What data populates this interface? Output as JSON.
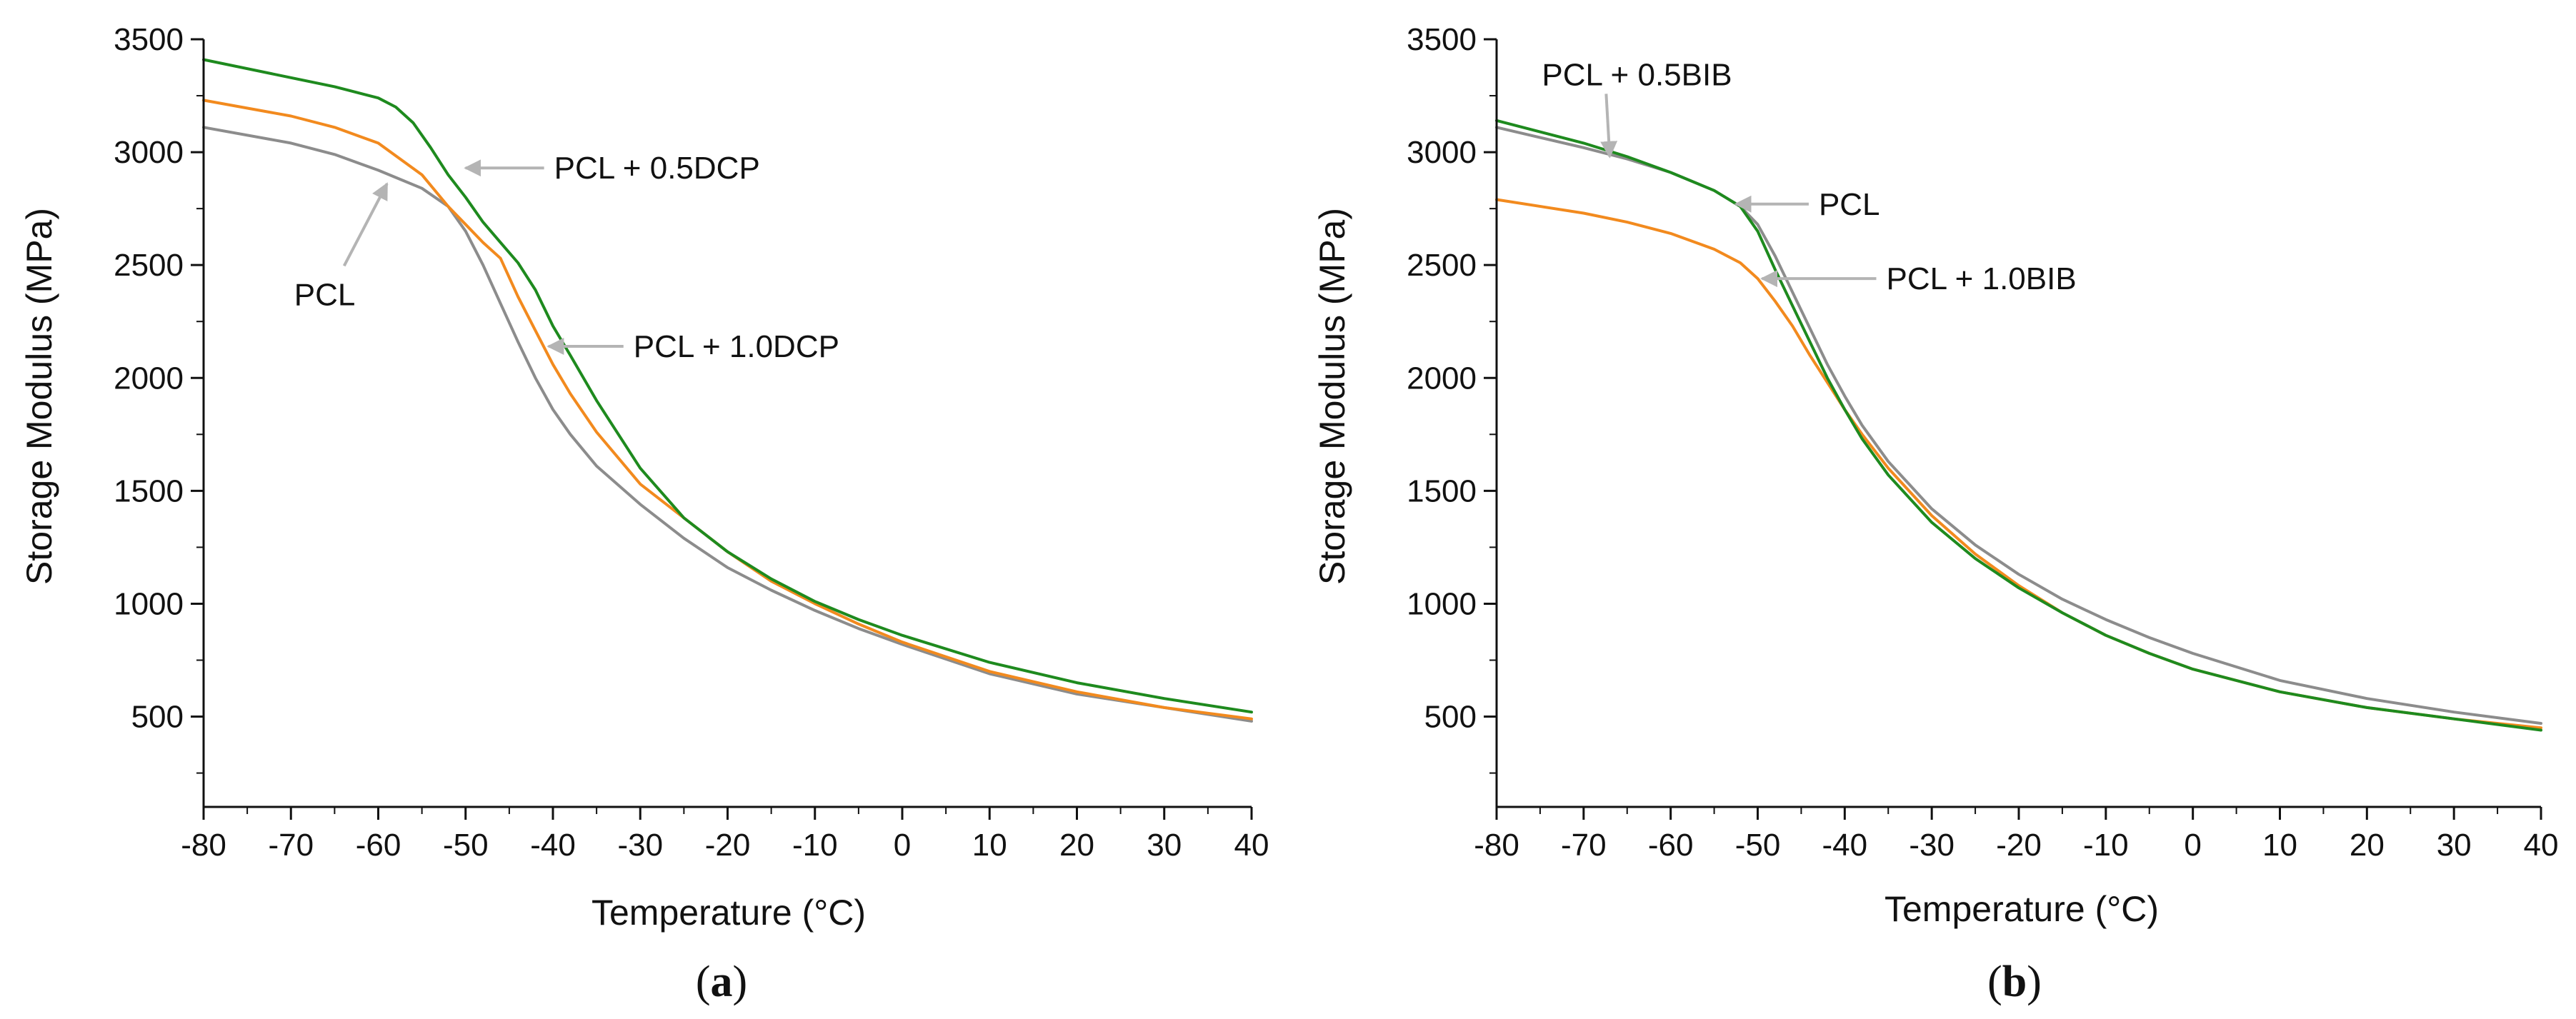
{
  "colors": {
    "pcl": "#8c8c8c",
    "mid": "#f28a1e",
    "high_a": "#1e8a1e",
    "high_b": "#1e8a1e",
    "arrow": "#b4b4b4",
    "axis": "#111111"
  },
  "chart_data": [
    {
      "type": "line",
      "panel": "a",
      "panel_label": {
        "open": "(",
        "letter": "a",
        "close": ")"
      },
      "title": "",
      "xlabel": "Temperature (°C)",
      "ylabel": "Storage Modulus (MPa)",
      "xlim": [
        -80,
        40
      ],
      "ylim": [
        100,
        3500
      ],
      "xticks": [
        -80,
        -70,
        -60,
        -50,
        -40,
        -30,
        -20,
        -10,
        0,
        10,
        20,
        30,
        40
      ],
      "yticks": [
        500,
        1000,
        1500,
        2000,
        2500,
        3000,
        3500
      ],
      "grid": false,
      "series": [
        {
          "name": "PCL",
          "color_key": "pcl",
          "x": [
            -80,
            -70,
            -65,
            -60,
            -55,
            -52,
            -50,
            -48,
            -46,
            -44,
            -42,
            -40,
            -38,
            -35,
            -30,
            -25,
            -20,
            -15,
            -10,
            -5,
            0,
            10,
            20,
            30,
            40
          ],
          "y": [
            3110,
            3040,
            2990,
            2920,
            2840,
            2760,
            2650,
            2500,
            2330,
            2160,
            2000,
            1860,
            1750,
            1610,
            1440,
            1290,
            1160,
            1060,
            970,
            890,
            820,
            690,
            600,
            540,
            480
          ]
        },
        {
          "name": "PCL + 1.0DCP",
          "color_key": "mid",
          "x": [
            -80,
            -70,
            -65,
            -60,
            -55,
            -52,
            -50,
            -48,
            -46,
            -44,
            -42,
            -40,
            -38,
            -35,
            -30,
            -25,
            -20,
            -15,
            -10,
            -5,
            0,
            10,
            20,
            30,
            40
          ],
          "y": [
            3230,
            3160,
            3110,
            3040,
            2900,
            2760,
            2680,
            2600,
            2530,
            2360,
            2210,
            2060,
            1930,
            1760,
            1530,
            1380,
            1230,
            1100,
            1000,
            910,
            830,
            700,
            610,
            540,
            490
          ]
        },
        {
          "name": "PCL + 0.5DCP",
          "color_key": "high_a",
          "x": [
            -80,
            -70,
            -65,
            -60,
            -58,
            -56,
            -54,
            -52,
            -50,
            -48,
            -46,
            -44,
            -42,
            -40,
            -38,
            -35,
            -30,
            -25,
            -20,
            -15,
            -10,
            -5,
            0,
            10,
            20,
            30,
            40
          ],
          "y": [
            3410,
            3330,
            3290,
            3240,
            3200,
            3130,
            3020,
            2900,
            2800,
            2690,
            2600,
            2510,
            2390,
            2230,
            2100,
            1900,
            1600,
            1380,
            1230,
            1110,
            1010,
            930,
            860,
            740,
            650,
            580,
            520
          ]
        }
      ],
      "annotations": [
        {
          "text": "PCL + 0.5DCP",
          "target": [
            -50.5,
            2930
          ]
        },
        {
          "text": "PCL",
          "target": [
            -59,
            2860
          ]
        },
        {
          "text": "PCL + 1.0DCP",
          "target": [
            -41,
            2140
          ]
        }
      ]
    },
    {
      "type": "line",
      "panel": "b",
      "panel_label": {
        "open": "(",
        "letter": "b",
        "close": ")"
      },
      "title": "",
      "xlabel": "Temperature (°C)",
      "ylabel": "Storage Modulus (MPa)",
      "xlim": [
        -80,
        40
      ],
      "ylim": [
        100,
        3500
      ],
      "xticks": [
        -80,
        -70,
        -60,
        -50,
        -40,
        -30,
        -20,
        -10,
        0,
        10,
        20,
        30,
        40
      ],
      "yticks": [
        500,
        1000,
        1500,
        2000,
        2500,
        3000,
        3500
      ],
      "grid": false,
      "series": [
        {
          "name": "PCL",
          "color_key": "pcl",
          "x": [
            -80,
            -70,
            -65,
            -60,
            -55,
            -52,
            -50,
            -48,
            -46,
            -44,
            -42,
            -40,
            -38,
            -35,
            -30,
            -25,
            -20,
            -15,
            -10,
            -5,
            0,
            10,
            20,
            30,
            40
          ],
          "y": [
            3110,
            3020,
            2970,
            2910,
            2830,
            2760,
            2680,
            2540,
            2380,
            2220,
            2060,
            1920,
            1790,
            1630,
            1420,
            1260,
            1130,
            1020,
            930,
            850,
            780,
            660,
            580,
            520,
            470
          ]
        },
        {
          "name": "PCL + 1.0BIB",
          "color_key": "mid",
          "x": [
            -80,
            -70,
            -65,
            -60,
            -55,
            -52,
            -50,
            -48,
            -46,
            -44,
            -42,
            -40,
            -38,
            -35,
            -30,
            -25,
            -20,
            -15,
            -10,
            -5,
            0,
            10,
            20,
            30,
            40
          ],
          "y": [
            2790,
            2730,
            2690,
            2640,
            2570,
            2510,
            2440,
            2340,
            2230,
            2100,
            1980,
            1860,
            1750,
            1600,
            1390,
            1220,
            1080,
            960,
            860,
            780,
            710,
            610,
            540,
            490,
            450
          ]
        },
        {
          "name": "PCL + 0.5BIB",
          "color_key": "high_b",
          "x": [
            -80,
            -70,
            -65,
            -60,
            -55,
            -52,
            -50,
            -48,
            -46,
            -44,
            -42,
            -40,
            -38,
            -35,
            -30,
            -25,
            -20,
            -15,
            -10,
            -5,
            0,
            10,
            20,
            30,
            40
          ],
          "y": [
            3140,
            3040,
            2980,
            2910,
            2830,
            2760,
            2650,
            2480,
            2320,
            2160,
            2000,
            1860,
            1730,
            1570,
            1360,
            1200,
            1070,
            960,
            860,
            780,
            710,
            610,
            540,
            490,
            440
          ]
        }
      ],
      "annotations": [
        {
          "text": "PCL + 0.5BIB",
          "target": [
            -67,
            2980
          ]
        },
        {
          "text": "PCL",
          "target": [
            -53,
            2770
          ]
        },
        {
          "text": "PCL + 1.0BIB",
          "target": [
            -50,
            2440
          ]
        }
      ]
    }
  ]
}
